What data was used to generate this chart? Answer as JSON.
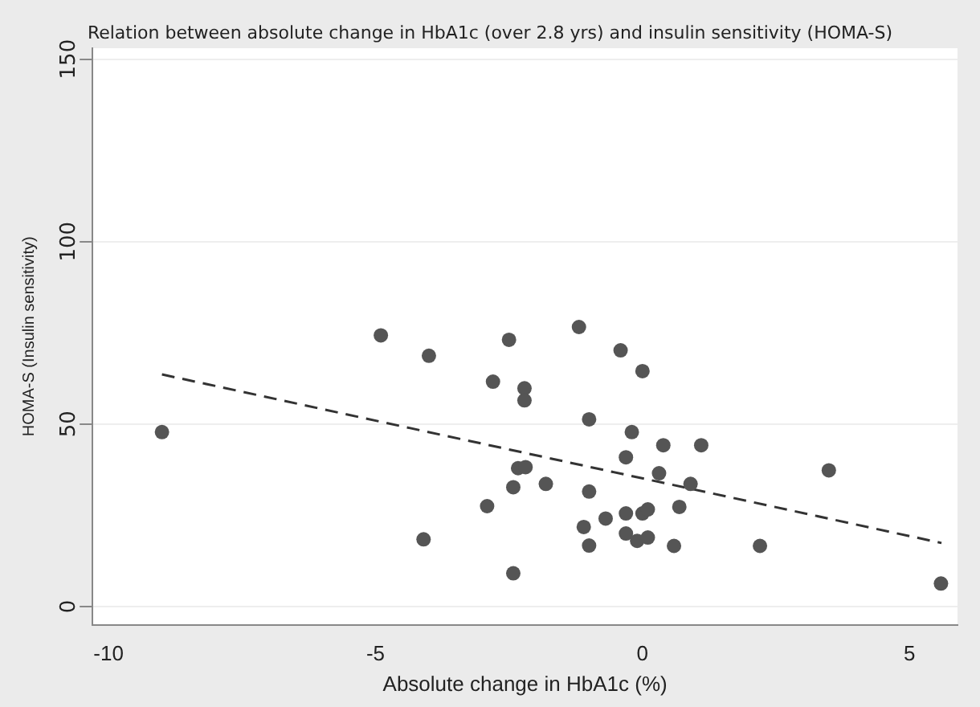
{
  "chart_data": {
    "type": "scatter",
    "title": "Relation between absolute change in HbA1c (over 2.8 yrs) and insulin sensitivity (HOMA-S)",
    "xlabel": "Absolute change in HbA1c (%)",
    "ylabel": "HOMA-S (Insulin sensitivity)",
    "xlim": [
      -10.3,
      5.9
    ],
    "xticks": [
      -10,
      -5,
      0,
      5
    ],
    "ylim": [
      -5,
      153
    ],
    "yticks": [
      0,
      50,
      100,
      150
    ],
    "grid": "y",
    "legend": false,
    "marker": "circle",
    "series": [
      {
        "color": "#555555",
        "x": [
          -9.0,
          -4.9,
          -4.0,
          -4.1,
          -2.5,
          -1.19,
          -0.41,
          0.0,
          -2.8,
          -2.21,
          -2.21,
          -1.0,
          -0.2,
          0.39,
          1.1,
          -0.31,
          0.31,
          3.49,
          -2.33,
          -2.19,
          -2.42,
          -1.81,
          -1.0,
          0.9,
          -2.91,
          0.69,
          -0.69,
          -0.31,
          0.0,
          0.1,
          -1.1,
          -0.31,
          -0.1,
          0.1,
          -1.0,
          0.59,
          2.2,
          -2.42,
          5.59
        ],
        "values": [
          47.8,
          74.3,
          68.7,
          18.4,
          73.1,
          76.6,
          70.2,
          64.5,
          61.6,
          59.8,
          56.5,
          51.3,
          47.8,
          44.2,
          44.2,
          40.9,
          36.5,
          37.3,
          37.9,
          38.2,
          32.7,
          33.6,
          31.5,
          33.6,
          27.5,
          27.3,
          24.1,
          25.5,
          25.5,
          26.6,
          21.8,
          20.0,
          18.0,
          18.9,
          16.7,
          16.6,
          16.6,
          9.1,
          6.3
        ]
      },
      {
        "color": "#333333",
        "type": "line",
        "line_style": "dashed",
        "marker": "none",
        "x": [
          -9.0,
          5.6
        ],
        "values": [
          63.6,
          17.4
        ]
      }
    ]
  }
}
